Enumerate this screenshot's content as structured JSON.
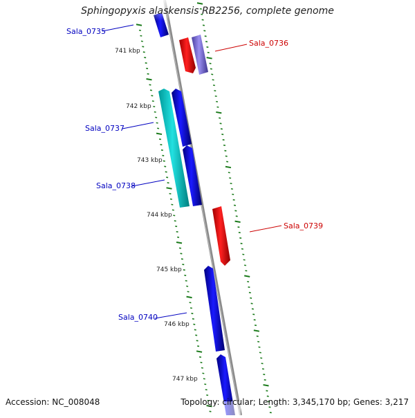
{
  "title": "Sphingopyxis alaskensis RB2256, complete genome",
  "footer": {
    "accession": "Accession: NC_008048",
    "summary": "Topology: circular; Length: 3,345,170 bp; Genes: 3,217"
  },
  "colors": {
    "forward_gene": "#0000e6",
    "reverse_gene": "#ff0000",
    "selected_forward": "#7766cc",
    "paired_gene": "#00c8c8",
    "backbone": "#8a8a8a",
    "tick": "#1a7a1a",
    "label_forward": "#0000c0",
    "label_reverse": "#cc0000"
  },
  "ticks": [
    "741 kbp",
    "742 kbp",
    "743 kbp",
    "744 kbp",
    "745 kbp",
    "746 kbp",
    "747 kbp"
  ],
  "genes": [
    {
      "id": "Sala_0735",
      "strand": "forward",
      "color_key": "forward_gene"
    },
    {
      "id": "Sala_0736",
      "strand": "reverse",
      "color_key": "reverse_gene"
    },
    {
      "id": "Sala_0737",
      "strand": "forward",
      "color_key": "paired_gene"
    },
    {
      "id": "Sala_0738",
      "strand": "forward",
      "color_key": "forward_gene"
    },
    {
      "id": "Sala_0739",
      "strand": "reverse",
      "color_key": "reverse_gene"
    },
    {
      "id": "Sala_0740",
      "strand": "forward",
      "color_key": "forward_gene"
    }
  ]
}
